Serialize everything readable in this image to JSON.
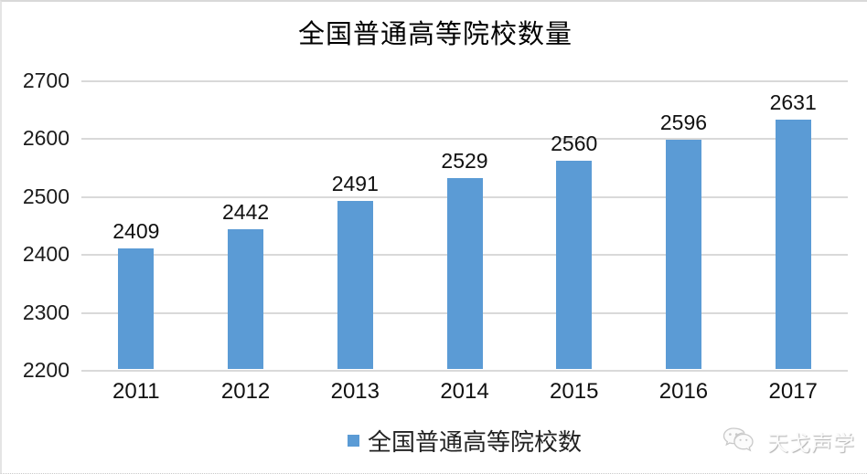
{
  "chart_data": {
    "type": "bar",
    "title": "全国普通高等院校数量",
    "categories": [
      "2011",
      "2012",
      "2013",
      "2014",
      "2015",
      "2016",
      "2017"
    ],
    "series": [
      {
        "name": "全国普通高等院校数",
        "values": [
          2409,
          2442,
          2491,
          2529,
          2560,
          2596,
          2631
        ]
      }
    ],
    "xlabel": "",
    "ylabel": "",
    "ylim": [
      2200,
      2700
    ],
    "yticks": [
      2200,
      2300,
      2400,
      2500,
      2600,
      2700
    ],
    "grid": true,
    "legend_position": "bottom",
    "legend": [
      "全国普通高等院校数"
    ],
    "colors": {
      "bar": "#5B9BD5",
      "gridline": "#D9D9D9",
      "label_text": "#111111",
      "tick_text": "#1C1C1C"
    }
  },
  "watermark": {
    "text": "天戈声学",
    "icon": "wechat-bubbles-icon"
  }
}
